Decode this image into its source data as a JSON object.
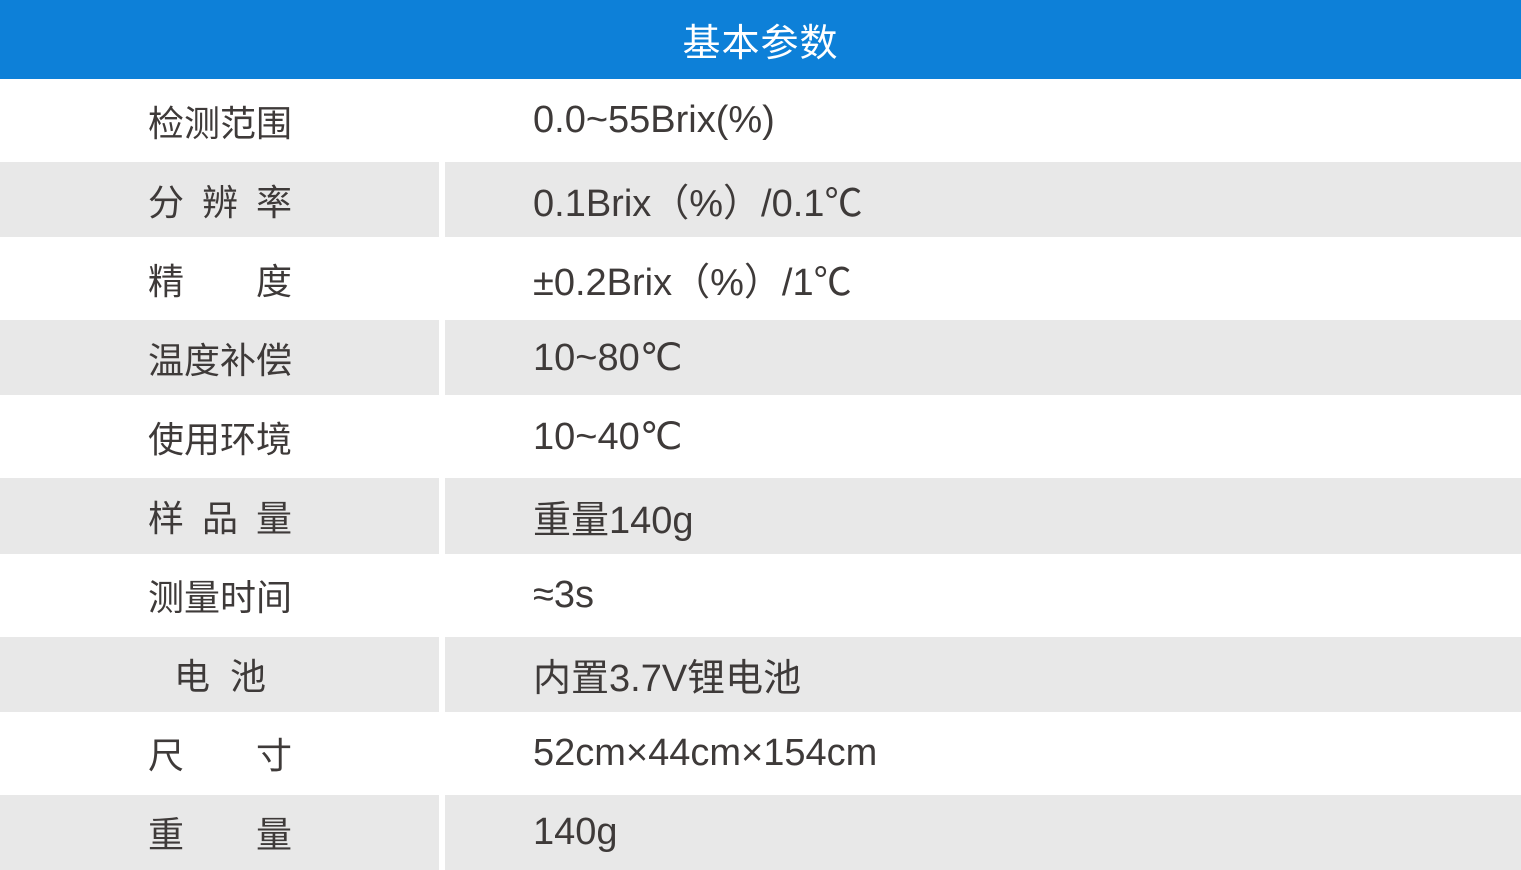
{
  "header": {
    "title": "基本参数"
  },
  "table": {
    "rows": [
      {
        "label": "检测范围",
        "value": "0.0~55Brix(%)"
      },
      {
        "label": "分辨率",
        "value": "0.1Brix（%）/0.1℃"
      },
      {
        "label": "精度",
        "value": "±0.2Brix（%）/1℃"
      },
      {
        "label": "温度补偿",
        "value": "10~80℃"
      },
      {
        "label": "使用环境",
        "value": "10~40℃"
      },
      {
        "label": "样品量",
        "value": "重量140g"
      },
      {
        "label": "测量时间",
        "value": "≈3s"
      },
      {
        "label": "电  池",
        "value": "内置3.7V锂电池"
      },
      {
        "label": "尺寸",
        "value": "52cm×44cm×154cm"
      },
      {
        "label": "重量",
        "value": "140g"
      }
    ]
  },
  "colors": {
    "header_bg": "#0d80d8",
    "header_text": "#ffffff",
    "row_shaded": "#e8e8e8",
    "row_plain": "#ffffff",
    "text": "#3e3a39",
    "divider": "#ffffff"
  }
}
